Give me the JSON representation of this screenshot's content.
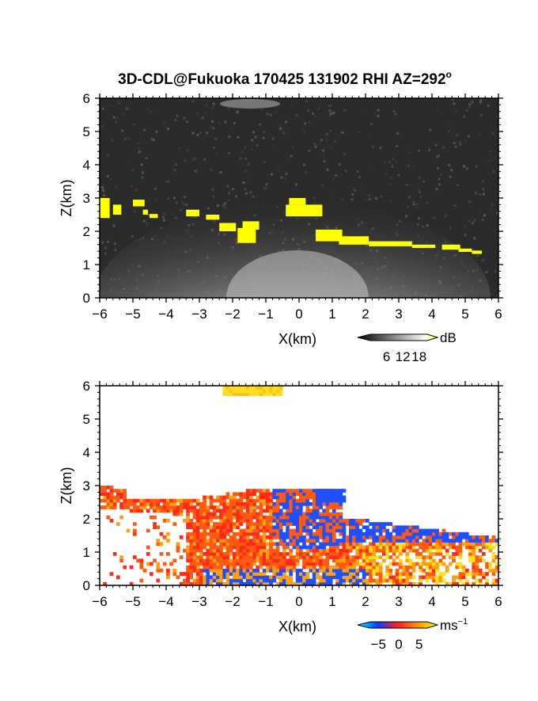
{
  "title": "3D-CDL@Fukuoka 170425 131902 RHI AZ=292",
  "title_degree": "o",
  "chart_data": [
    {
      "type": "heatmap",
      "panel": "reflectivity",
      "xlabel": "X(km)",
      "ylabel": "Z(km)",
      "xlim": [
        -6,
        6
      ],
      "ylim": [
        0,
        6
      ],
      "x_ticks": [
        "-6",
        "-5",
        "-4",
        "-3",
        "-2",
        "-1",
        "0",
        "1",
        "2",
        "3",
        "4",
        "5",
        "6"
      ],
      "y_ticks": [
        "0",
        "1",
        "2",
        "3",
        "4",
        "5",
        "6"
      ],
      "colorbar": {
        "unit": "dB",
        "ticks": [
          "6",
          "12",
          "18"
        ],
        "range": [
          0,
          21
        ],
        "colors": [
          "#000000",
          "#ffffff",
          "#ffff00"
        ]
      },
      "grid": false
    },
    {
      "type": "heatmap",
      "panel": "doppler_velocity",
      "xlabel": "X(km)",
      "ylabel": "Z(km)",
      "xlim": [
        -6,
        6
      ],
      "ylim": [
        0,
        6
      ],
      "x_ticks": [
        "-6",
        "-5",
        "-4",
        "-3",
        "-2",
        "-1",
        "0",
        "1",
        "2",
        "3",
        "4",
        "5",
        "6"
      ],
      "y_ticks": [
        "0",
        "1",
        "2",
        "3",
        "4",
        "5",
        "6"
      ],
      "colorbar": {
        "unit": "ms",
        "unit_exp": "−1",
        "ticks": [
          "−5",
          "0",
          "5"
        ],
        "range": [
          -7,
          7
        ],
        "colors": [
          "#00ffff",
          "#0040ff",
          "#ff2020",
          "#ffff00"
        ]
      },
      "grid": false
    }
  ]
}
